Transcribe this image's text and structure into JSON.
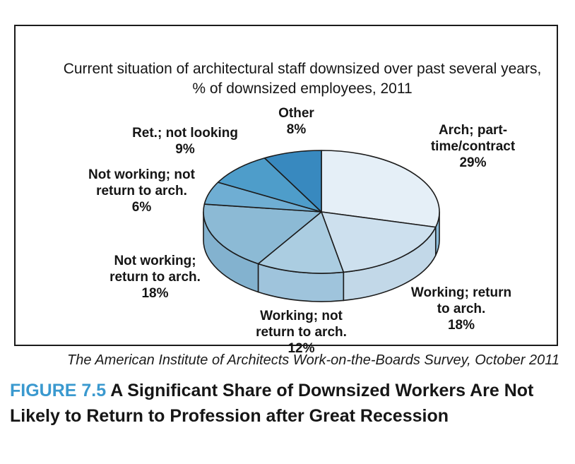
{
  "chart_data": {
    "type": "pie",
    "style": "3d",
    "title": "Current situation of architectural staff downsized over past several years,\n% of downsized employees, 2011",
    "start_angle_deg": 0,
    "direction": "clockwise",
    "legend_position": "none",
    "slices": [
      {
        "label": "Arch; part-time/contract",
        "value": 29,
        "pct": "29%",
        "label_lines": "Arch; part-\ntime/contract",
        "color": "#E5EFF7",
        "side_color": "#8CBCDA"
      },
      {
        "label": "Working; return to arch.",
        "value": 18,
        "pct": "18%",
        "label_lines": "Working; return\nto arch.",
        "color": "#CDE0EE",
        "side_color": "#C2D8E8"
      },
      {
        "label": "Working; not return to arch.",
        "value": 12,
        "pct": "12%",
        "label_lines": "Working; not\nreturn to arch.",
        "color": "#ABCDE1",
        "side_color": "#9FC4DC"
      },
      {
        "label": "Not working; return to arch.",
        "value": 18,
        "pct": "18%",
        "label_lines": "Not working;\nreturn to arch.",
        "color": "#8CBAD5",
        "side_color": "#83B2CF"
      },
      {
        "label": "Not working; not return to arch.",
        "value": 6,
        "pct": "6%",
        "label_lines": "Not working; not\nreturn to arch.",
        "color": "#6FAED3",
        "side_color": "#65A5CB"
      },
      {
        "label": "Ret.; not looking",
        "value": 9,
        "pct": "9%",
        "label_lines": "Ret.; not looking",
        "color": "#4E9DCA",
        "side_color": "#4793C2"
      },
      {
        "label": "Other",
        "value": 8,
        "pct": "8%",
        "label_lines": "Other",
        "color": "#3889BF",
        "side_color": "#3381B6"
      }
    ],
    "outline_color": "#1b1b1b"
  },
  "source": {
    "text": "The American Institute of Architects Work-on-the-Boards Survey, October 2011"
  },
  "caption": {
    "figure_label": "FIGURE 7.5",
    "text": "A Significant Share of Downsized Workers Are Not Likely to Return to Profession after Great Recession",
    "accent_color": "#3A99CF"
  }
}
